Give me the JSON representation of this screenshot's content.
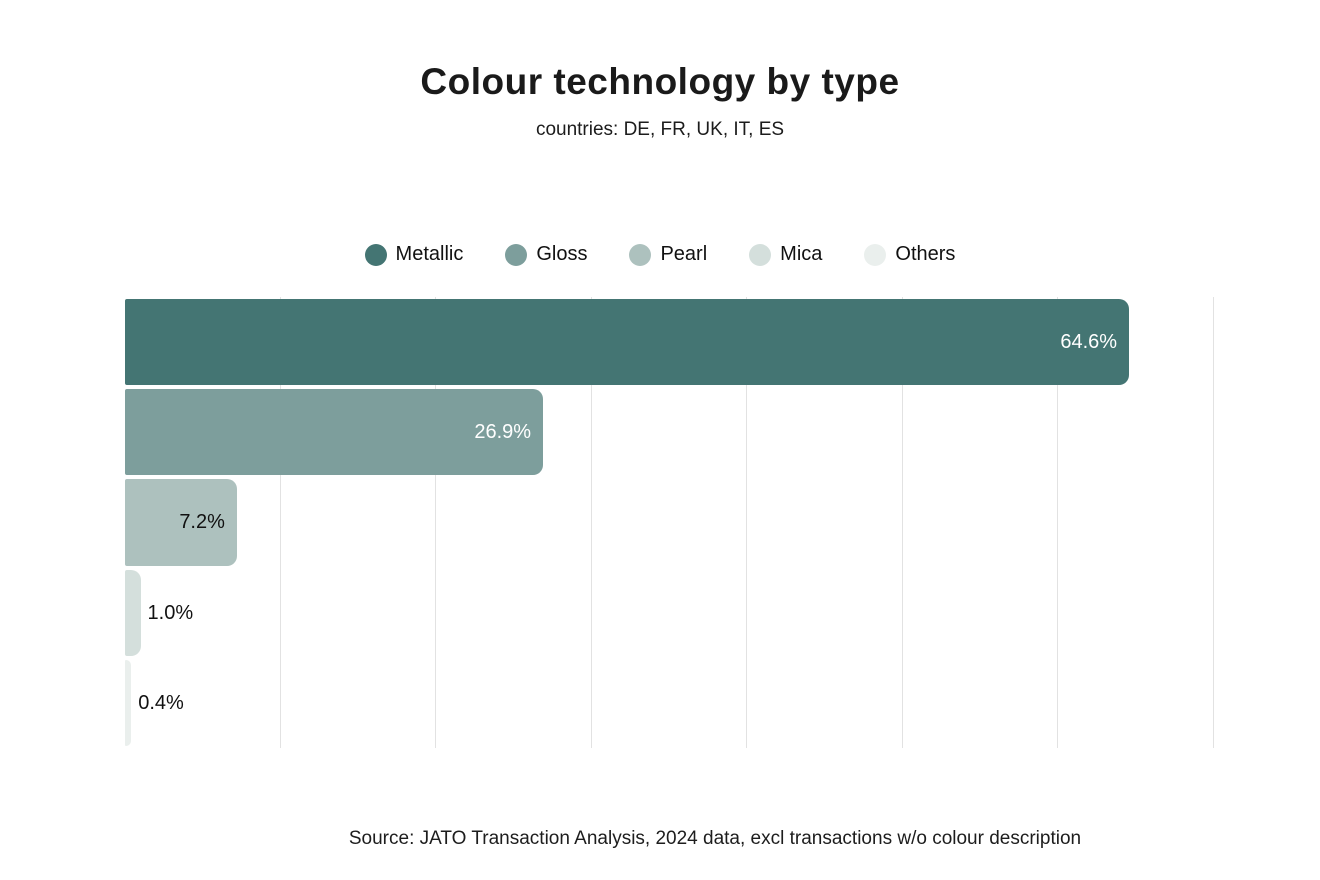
{
  "header": {
    "title": "Colour technology by type",
    "subtitle": "countries: DE, FR, UK, IT, ES"
  },
  "footer": {
    "source": "Source: JATO Transaction Analysis, 2024 data, excl transactions w/o colour description"
  },
  "colors": {
    "background": "#FFFFFF",
    "gridline": "#E2E2E2",
    "title_text": "#1A1A1A",
    "body_text": "#1C1C1C",
    "label_light": "#FFFFFF",
    "label_dark": "#111111"
  },
  "chart_data": {
    "type": "bar",
    "orientation": "horizontal",
    "title": "Colour technology by type",
    "subtitle": "countries: DE, FR, UK, IT, ES",
    "xlabel": "",
    "ylabel": "",
    "xlim": [
      0,
      70
    ],
    "gridline_step": 10,
    "grid": true,
    "axis_tick_labels_visible": false,
    "legend_position": "top",
    "categories": [
      "Metallic",
      "Gloss",
      "Pearl",
      "Mica",
      "Others"
    ],
    "values": [
      64.6,
      26.9,
      7.2,
      1.0,
      0.4
    ],
    "series": [
      {
        "name": "Metallic",
        "value": 64.6,
        "label": "64.6%",
        "color": "#447573",
        "label_color": "#FFFFFF",
        "label_position": "inside"
      },
      {
        "name": "Gloss",
        "value": 26.9,
        "label": "26.9%",
        "color": "#7D9E9C",
        "label_color": "#FFFFFF",
        "label_position": "inside"
      },
      {
        "name": "Pearl",
        "value": 7.2,
        "label": "7.2%",
        "color": "#ADC1BE",
        "label_color": "#111111",
        "label_position": "inside"
      },
      {
        "name": "Mica",
        "value": 1.0,
        "label": "1.0%",
        "color": "#D4DFDC",
        "label_color": "#111111",
        "label_position": "outside"
      },
      {
        "name": "Others",
        "value": 0.4,
        "label": "0.4%",
        "color": "#EAEFED",
        "label_color": "#111111",
        "label_position": "outside"
      }
    ]
  }
}
